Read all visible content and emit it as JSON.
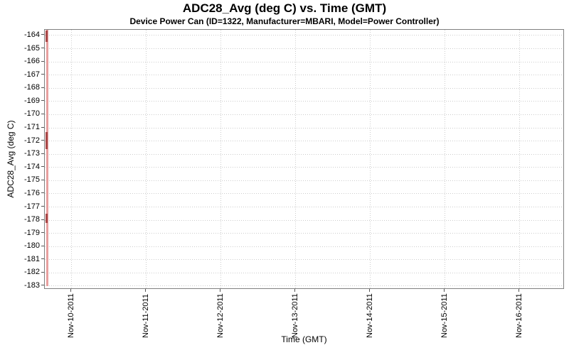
{
  "chart_data": {
    "type": "line",
    "title": "ADC28_Avg (deg C) vs. Time (GMT)",
    "subtitle": "Device Power Can (ID=1322, Manufacturer=MBARI, Model=Power Controller)",
    "xlabel": "Time (GMT)",
    "ylabel": "ADC28_Avg (deg C)",
    "x_tick_labels": [
      "Nov-10-2011",
      "Nov-11-2011",
      "Nov-12-2011",
      "Nov-13-2011",
      "Nov-14-2011",
      "Nov-15-2011",
      "Nov-16-2011"
    ],
    "y_tick_labels": [
      "-164",
      "-165",
      "-166",
      "-167",
      "-168",
      "-169",
      "-170",
      "-171",
      "-172",
      "-173",
      "-174",
      "-175",
      "-176",
      "-177",
      "-178",
      "-179",
      "-180",
      "-181",
      "-182",
      "-183"
    ],
    "ylim": [
      -183.27,
      -163.57
    ],
    "x_axis_note": "ticks every 1 day; plot starts ~Nov-09-2011 15:40 GMT",
    "grid": {
      "style": "dotted",
      "color": "#cccccc",
      "on": true
    },
    "plot_border_color": "#808080",
    "tick_color": "#555555",
    "background": "#ffffff",
    "legend": "none",
    "series": [
      {
        "name": "ADC28_Avg",
        "color": "#e89f9f",
        "dense_color": "#a84848",
        "description": "All samples cluster at ~Nov-09-2011 16:00 GMT (left edge of plot); values oscillate rapidly over the full range -164 to -183 deg C, drawing a thin vertical band",
        "x_fraction": 0.004,
        "y_min": -183,
        "y_max": -164,
        "dense_value_ranges": [
          [
            -163.6,
            -164.5
          ],
          [
            -171.3,
            -172.6
          ],
          [
            -177.5,
            -178.2
          ]
        ]
      }
    ]
  }
}
